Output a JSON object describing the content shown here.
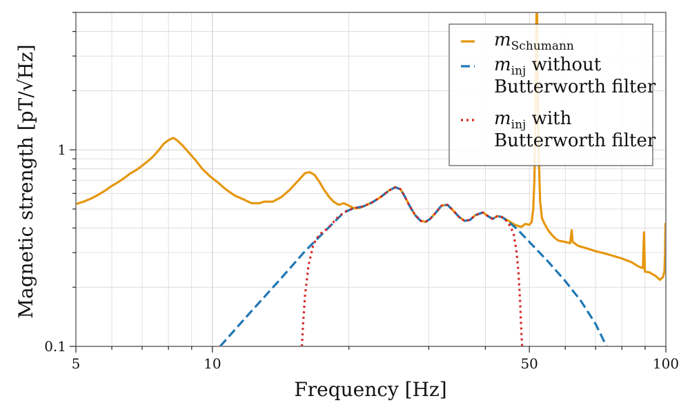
{
  "chart_data": {
    "type": "line",
    "xscale": "log",
    "yscale": "log",
    "xlim": [
      5,
      100
    ],
    "ylim": [
      0.1,
      5
    ],
    "xlabel": "Frequency [Hz]",
    "ylabel": "Magnetic strength [pT/√Hz]",
    "xticks": [
      {
        "value": 5,
        "label": "5"
      },
      {
        "value": 10,
        "label": "10"
      },
      {
        "value": 50,
        "label": "50"
      },
      {
        "value": 100,
        "label": "100"
      }
    ],
    "yticks": [
      {
        "value": 0.1,
        "label": "0.1"
      },
      {
        "value": 1,
        "label": "1"
      }
    ],
    "grid": true,
    "legend": {
      "position": "top-right",
      "entries": [
        {
          "series": "m_schumann",
          "math": "m",
          "sub": "Schumann",
          "text_lines": []
        },
        {
          "series": "m_inj_no_filter",
          "math": "m",
          "sub": "inj",
          "text_lines": [
            " without",
            "Butterworth filter"
          ]
        },
        {
          "series": "m_inj_filter",
          "math": "m",
          "sub": "inj",
          "text_lines": [
            " with",
            "Butterworth filter"
          ]
        }
      ]
    },
    "series": [
      {
        "name": "m_Schumann",
        "id": "m_schumann",
        "color": "#E69710",
        "style": "solid",
        "points": [
          [
            5.0,
            0.53
          ],
          [
            5.2,
            0.545
          ],
          [
            5.4,
            0.565
          ],
          [
            5.6,
            0.59
          ],
          [
            5.8,
            0.62
          ],
          [
            6.0,
            0.655
          ],
          [
            6.2,
            0.685
          ],
          [
            6.4,
            0.72
          ],
          [
            6.6,
            0.76
          ],
          [
            6.8,
            0.79
          ],
          [
            7.0,
            0.83
          ],
          [
            7.2,
            0.875
          ],
          [
            7.4,
            0.925
          ],
          [
            7.6,
            0.99
          ],
          [
            7.8,
            1.07
          ],
          [
            8.0,
            1.12
          ],
          [
            8.2,
            1.15
          ],
          [
            8.35,
            1.12
          ],
          [
            8.6,
            1.05
          ],
          [
            8.9,
            0.96
          ],
          [
            9.2,
            0.88
          ],
          [
            9.5,
            0.8
          ],
          [
            9.9,
            0.73
          ],
          [
            10.3,
            0.68
          ],
          [
            10.7,
            0.63
          ],
          [
            11.2,
            0.585
          ],
          [
            11.7,
            0.56
          ],
          [
            12.2,
            0.535
          ],
          [
            12.7,
            0.535
          ],
          [
            13.0,
            0.545
          ],
          [
            13.6,
            0.545
          ],
          [
            14.2,
            0.575
          ],
          [
            14.8,
            0.625
          ],
          [
            15.4,
            0.69
          ],
          [
            16.0,
            0.76
          ],
          [
            16.4,
            0.77
          ],
          [
            16.8,
            0.745
          ],
          [
            17.2,
            0.69
          ],
          [
            17.6,
            0.63
          ],
          [
            18.1,
            0.575
          ],
          [
            18.5,
            0.545
          ],
          [
            19.0,
            0.525
          ],
          [
            19.5,
            0.535
          ],
          [
            20.0,
            0.52
          ],
          [
            20.5,
            0.505
          ],
          [
            21.0,
            0.505
          ],
          [
            21.5,
            0.515
          ],
          [
            22.5,
            0.54
          ],
          [
            23.5,
            0.575
          ],
          [
            24.5,
            0.62
          ],
          [
            25.3,
            0.645
          ],
          [
            26.0,
            0.63
          ],
          [
            26.5,
            0.585
          ],
          [
            27.2,
            0.52
          ],
          [
            28.0,
            0.465
          ],
          [
            28.8,
            0.435
          ],
          [
            29.5,
            0.43
          ],
          [
            30.2,
            0.445
          ],
          [
            31.0,
            0.475
          ],
          [
            32.0,
            0.52
          ],
          [
            33.0,
            0.525
          ],
          [
            34.0,
            0.49
          ],
          [
            35.0,
            0.455
          ],
          [
            36.0,
            0.435
          ],
          [
            37.0,
            0.44
          ],
          [
            38.0,
            0.465
          ],
          [
            39.5,
            0.48
          ],
          [
            40.5,
            0.46
          ],
          [
            41.5,
            0.445
          ],
          [
            42.5,
            0.46
          ],
          [
            43.5,
            0.455
          ],
          [
            45.0,
            0.435
          ],
          [
            46.5,
            0.415
          ],
          [
            48.0,
            0.405
          ],
          [
            49.0,
            0.42
          ],
          [
            50.0,
            0.415
          ],
          [
            50.6,
            0.43
          ],
          [
            51.0,
            0.5
          ],
          [
            51.3,
            0.7
          ],
          [
            51.5,
            1.2
          ],
          [
            51.7,
            3.0
          ],
          [
            51.85,
            5.0
          ],
          [
            52.0,
            5.0
          ],
          [
            52.15,
            2.5
          ],
          [
            52.4,
            1.0
          ],
          [
            52.8,
            0.55
          ],
          [
            53.3,
            0.45
          ],
          [
            54.0,
            0.42
          ],
          [
            55.0,
            0.39
          ],
          [
            56.0,
            0.37
          ],
          [
            57.0,
            0.355
          ],
          [
            58.0,
            0.345
          ],
          [
            60.0,
            0.34
          ],
          [
            61.5,
            0.335
          ],
          [
            62.0,
            0.39
          ],
          [
            62.3,
            0.34
          ],
          [
            64.0,
            0.325
          ],
          [
            67.0,
            0.315
          ],
          [
            70.0,
            0.305
          ],
          [
            73.0,
            0.298
          ],
          [
            76.0,
            0.29
          ],
          [
            80.0,
            0.28
          ],
          [
            84.0,
            0.268
          ],
          [
            87.0,
            0.255
          ],
          [
            89.0,
            0.25
          ],
          [
            89.5,
            0.38
          ],
          [
            89.9,
            0.24
          ],
          [
            92.0,
            0.238
          ],
          [
            95.0,
            0.228
          ],
          [
            97.0,
            0.218
          ],
          [
            98.5,
            0.225
          ],
          [
            99.3,
            0.24
          ],
          [
            99.6,
            0.3
          ],
          [
            99.8,
            0.42
          ],
          [
            100.0,
            0.3
          ]
        ]
      },
      {
        "name": "m_inj without Butterworth filter",
        "id": "m_inj_no_filter",
        "color": "#1F77B4",
        "style": "dashed",
        "points": [
          [
            10.4,
            0.1
          ],
          [
            12.0,
            0.145
          ],
          [
            14.0,
            0.215
          ],
          [
            16.0,
            0.305
          ],
          [
            18.0,
            0.4
          ],
          [
            19.5,
            0.48
          ],
          [
            20.5,
            0.505
          ],
          [
            21.5,
            0.515
          ],
          [
            22.5,
            0.54
          ],
          [
            23.5,
            0.575
          ],
          [
            24.5,
            0.62
          ],
          [
            25.3,
            0.645
          ],
          [
            26.0,
            0.63
          ],
          [
            26.5,
            0.585
          ],
          [
            27.2,
            0.52
          ],
          [
            28.0,
            0.465
          ],
          [
            28.8,
            0.435
          ],
          [
            29.5,
            0.43
          ],
          [
            30.2,
            0.445
          ],
          [
            31.0,
            0.475
          ],
          [
            32.0,
            0.52
          ],
          [
            33.0,
            0.525
          ],
          [
            34.0,
            0.49
          ],
          [
            35.0,
            0.455
          ],
          [
            36.0,
            0.435
          ],
          [
            37.0,
            0.44
          ],
          [
            38.0,
            0.465
          ],
          [
            39.5,
            0.48
          ],
          [
            40.5,
            0.46
          ],
          [
            41.5,
            0.445
          ],
          [
            42.5,
            0.46
          ],
          [
            43.5,
            0.455
          ],
          [
            45.0,
            0.43
          ],
          [
            47.0,
            0.395
          ],
          [
            50.0,
            0.34
          ],
          [
            55.0,
            0.27
          ],
          [
            60.0,
            0.215
          ],
          [
            65.0,
            0.17
          ],
          [
            70.0,
            0.13
          ],
          [
            74.0,
            0.1
          ]
        ]
      },
      {
        "name": "m_inj with Butterworth filter",
        "id": "m_inj_filter",
        "color": "#D62728",
        "style": "dotted",
        "points": [
          [
            15.75,
            0.1
          ],
          [
            15.85,
            0.13
          ],
          [
            16.0,
            0.18
          ],
          [
            16.3,
            0.26
          ],
          [
            16.7,
            0.33
          ],
          [
            17.2,
            0.37
          ],
          [
            18.0,
            0.4
          ],
          [
            19.0,
            0.46
          ],
          [
            19.8,
            0.49
          ],
          [
            20.5,
            0.505
          ],
          [
            21.5,
            0.515
          ],
          [
            22.5,
            0.54
          ],
          [
            23.5,
            0.575
          ],
          [
            24.5,
            0.62
          ],
          [
            25.3,
            0.645
          ],
          [
            26.0,
            0.63
          ],
          [
            26.5,
            0.585
          ],
          [
            27.2,
            0.52
          ],
          [
            28.0,
            0.465
          ],
          [
            28.8,
            0.435
          ],
          [
            29.5,
            0.43
          ],
          [
            30.2,
            0.445
          ],
          [
            31.0,
            0.475
          ],
          [
            32.0,
            0.52
          ],
          [
            33.0,
            0.525
          ],
          [
            34.0,
            0.49
          ],
          [
            35.0,
            0.455
          ],
          [
            36.0,
            0.435
          ],
          [
            37.0,
            0.44
          ],
          [
            38.0,
            0.465
          ],
          [
            39.5,
            0.48
          ],
          [
            40.5,
            0.46
          ],
          [
            41.5,
            0.445
          ],
          [
            42.5,
            0.46
          ],
          [
            43.5,
            0.455
          ],
          [
            44.5,
            0.435
          ],
          [
            45.5,
            0.405
          ],
          [
            46.2,
            0.37
          ],
          [
            46.8,
            0.31
          ],
          [
            47.3,
            0.24
          ],
          [
            47.7,
            0.17
          ],
          [
            48.0,
            0.12
          ],
          [
            48.2,
            0.1
          ]
        ]
      }
    ]
  }
}
